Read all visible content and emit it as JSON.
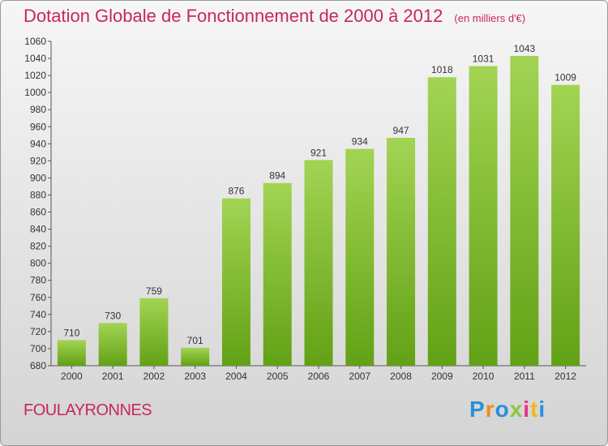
{
  "header": {
    "title": "Dotation Globale de Fonctionnement de 2000 à 2012",
    "unit": "(en milliers d'€)"
  },
  "commune": "FOULAYRONNES",
  "logo": {
    "text": "Proxiti"
  },
  "colors": {
    "title": "#c8265f",
    "bar_light": "#a2d453",
    "bar_dark": "#62a115"
  },
  "chart_data": {
    "type": "bar",
    "title": "Dotation Globale de Fonctionnement de 2000 à 2012",
    "subtitle": "(en milliers d'€)",
    "categories": [
      "2000",
      "2001",
      "2002",
      "2003",
      "2004",
      "2005",
      "2006",
      "2007",
      "2008",
      "2009",
      "2010",
      "2011",
      "2012"
    ],
    "values": [
      710,
      730,
      759,
      701,
      876,
      894,
      921,
      934,
      947,
      1018,
      1031,
      1043,
      1009
    ],
    "ylim": [
      680,
      1060
    ],
    "yticks": [
      680,
      700,
      720,
      740,
      760,
      780,
      800,
      820,
      840,
      860,
      880,
      900,
      920,
      940,
      960,
      980,
      1000,
      1020,
      1040,
      1060
    ],
    "grid": false,
    "legend": "none"
  }
}
